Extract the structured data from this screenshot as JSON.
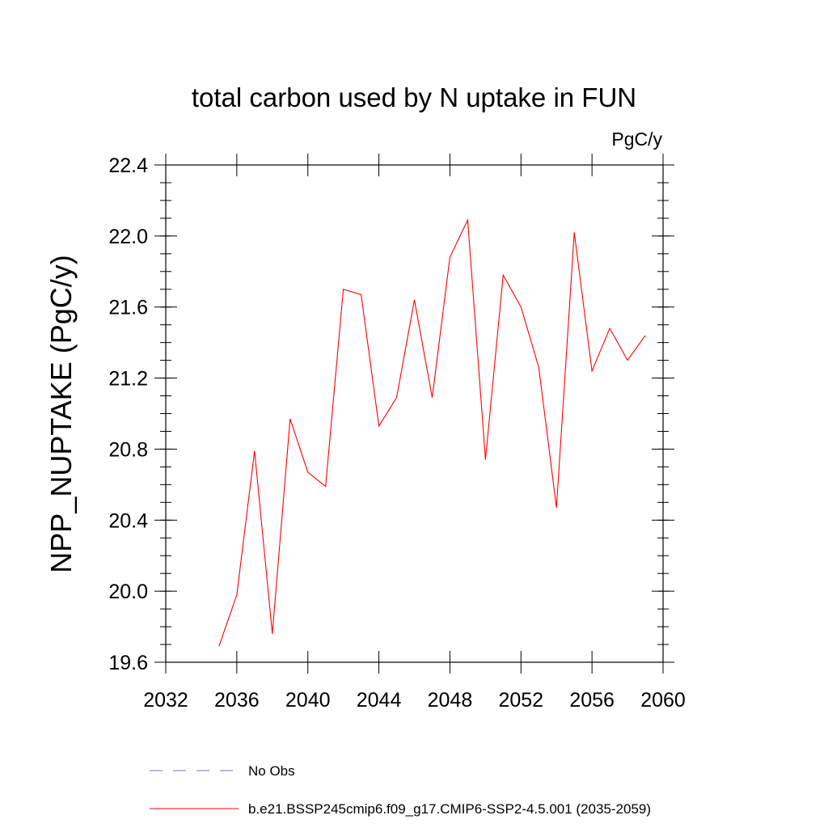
{
  "chart_data": {
    "type": "line",
    "title": "total carbon used by N uptake in FUN",
    "units": "PgC/y",
    "xlabel": "",
    "ylabel": "NPP_NUPTAKE  (PgC/y)",
    "xlim": [
      2032,
      2060
    ],
    "ylim": [
      19.6,
      22.4
    ],
    "xticks": [
      2032,
      2036,
      2040,
      2044,
      2048,
      2052,
      2056,
      2060
    ],
    "yticks": [
      "19.6",
      "20.0",
      "20.4",
      "20.8",
      "21.2",
      "21.6",
      "22.0",
      "22.4"
    ],
    "grid": false,
    "legend_position": "bottom",
    "series": [
      {
        "name": "b.e21.BSSP245cmip6.f09_g17.CMIP6-SSP2-4.5.001 (2035-2059)",
        "color": "#ff0000",
        "style": "solid",
        "x": [
          2035,
          2036,
          2037,
          2038,
          2039,
          2040,
          2041,
          2042,
          2043,
          2044,
          2045,
          2046,
          2047,
          2048,
          2049,
          2050,
          2051,
          2052,
          2053,
          2054,
          2055,
          2056,
          2057,
          2058,
          2059
        ],
        "values": [
          19.69,
          19.98,
          20.79,
          19.76,
          20.97,
          20.67,
          20.59,
          21.7,
          21.67,
          20.93,
          21.09,
          21.64,
          21.09,
          21.88,
          22.09,
          20.74,
          21.78,
          21.6,
          21.26,
          20.47,
          22.02,
          21.24,
          21.48,
          21.3,
          21.44
        ]
      }
    ],
    "legend": [
      {
        "label": "No Obs",
        "color": "#7b6fb8",
        "style": "dashed"
      },
      {
        "label": "b.e21.BSSP245cmip6.f09_g17.CMIP6-SSP2-4.5.001 (2035-2059)",
        "color": "#ff0000",
        "style": "solid"
      }
    ]
  }
}
